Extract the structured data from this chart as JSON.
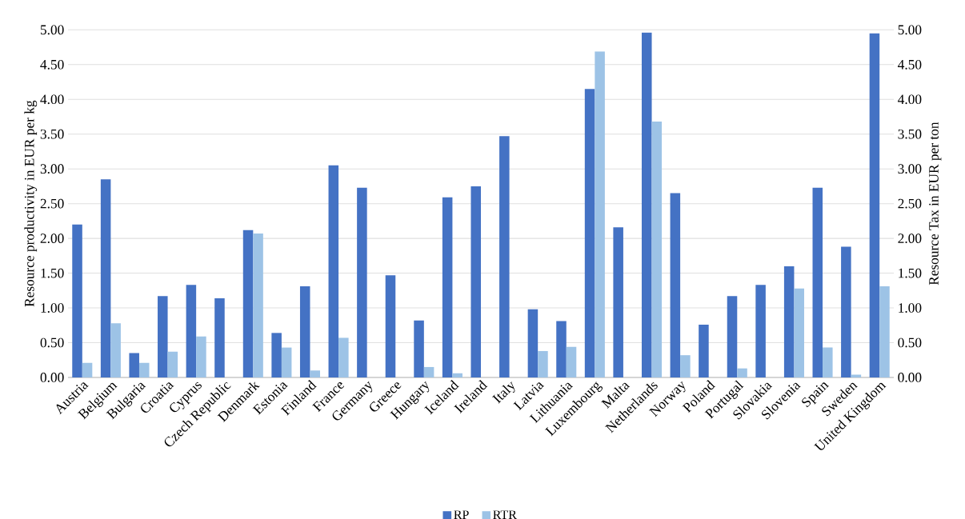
{
  "chart_data": {
    "type": "bar",
    "categories": [
      "Austria",
      "Belgium",
      "Bulgaria",
      "Croatia",
      "Cyprus",
      "Czech Republic",
      "Denmark",
      "Estonia",
      "Finland",
      "France",
      "Germany",
      "Greece",
      "Hungary",
      "Iceland",
      "Ireland",
      "Italy",
      "Latvia",
      "Lithuania",
      "Luxembourg",
      "Malta",
      "Netherlands",
      "Norway",
      "Poland",
      "Portugal",
      "Slovakia",
      "Slovenia",
      "Spain",
      "Sweden",
      "United Kingdom"
    ],
    "series": [
      {
        "name": "RP",
        "color": "#4472c4",
        "values": [
          2.2,
          2.85,
          0.35,
          1.17,
          1.33,
          1.14,
          2.12,
          0.64,
          1.31,
          3.05,
          2.73,
          1.47,
          0.82,
          2.59,
          2.75,
          3.47,
          0.98,
          0.81,
          4.15,
          2.16,
          4.96,
          2.65,
          0.76,
          1.17,
          1.33,
          1.6,
          2.73,
          1.88,
          4.95
        ]
      },
      {
        "name": "RTR",
        "color": "#9dc3e6",
        "axis": "y2",
        "values": [
          0.21,
          0.78,
          0.21,
          0.37,
          0.59,
          null,
          2.07,
          0.43,
          0.1,
          0.57,
          null,
          null,
          0.15,
          0.06,
          null,
          null,
          0.38,
          0.44,
          4.69,
          null,
          3.68,
          0.32,
          null,
          0.13,
          null,
          1.28,
          0.43,
          0.04,
          1.31
        ]
      }
    ],
    "ylabel": "Resource productivity in EUR per kg",
    "y2label": "Resource Tax in EUR per ton",
    "ylim": [
      0,
      5
    ],
    "yticks": [
      {
        "value": 0,
        "label": "0.00"
      },
      {
        "value": 0.5,
        "label": "0.50"
      },
      {
        "value": 1,
        "label": "1.00"
      },
      {
        "value": 1.5,
        "label": "1.50"
      },
      {
        "value": 2,
        "label": "2.00"
      },
      {
        "value": 2.5,
        "label": "2.50"
      },
      {
        "value": 3,
        "label": "3.00"
      },
      {
        "value": 3.5,
        "label": "3.50"
      },
      {
        "value": 4,
        "label": "4.00"
      },
      {
        "value": 4.5,
        "label": "4.50"
      },
      {
        "value": 5,
        "label": "5.00"
      }
    ],
    "y2lim": [
      0,
      5
    ],
    "y2ticks": [
      {
        "value": 0,
        "label": "0.00"
      },
      {
        "value": 0.5,
        "label": "0.50"
      },
      {
        "value": 1,
        "label": "1.00"
      },
      {
        "value": 1.5,
        "label": "1.50"
      },
      {
        "value": 2,
        "label": "2.00"
      },
      {
        "value": 2.5,
        "label": "2.50"
      },
      {
        "value": 3,
        "label": "3.00"
      },
      {
        "value": 3.5,
        "label": "3.50"
      },
      {
        "value": 4,
        "label": "4.00"
      },
      {
        "value": 4.5,
        "label": "4.50"
      },
      {
        "value": 5,
        "label": "5.00"
      }
    ],
    "grid": "y",
    "legend": "bottom"
  }
}
